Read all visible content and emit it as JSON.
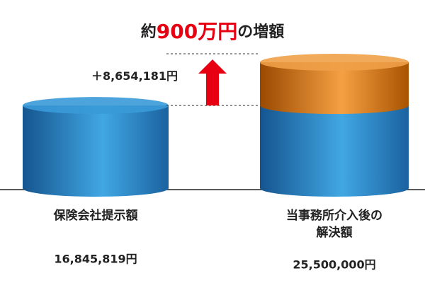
{
  "chart_data": {
    "type": "cylinder-bar",
    "title_parts": [
      "約",
      "900万円",
      "の増額"
    ],
    "categories": [
      [
        "保険会社提示額"
      ],
      [
        "当事務所介入後の",
        "解決額"
      ]
    ],
    "values": [
      16845819,
      25500000
    ],
    "value_labels": [
      "16,845,819円",
      "25,500,000円"
    ],
    "increase": {
      "value": 8654181,
      "label": "＋8,654,181円"
    },
    "colors": {
      "base": "#2a86cc",
      "increase": "#e07b1a",
      "accent": "#e60012"
    }
  }
}
